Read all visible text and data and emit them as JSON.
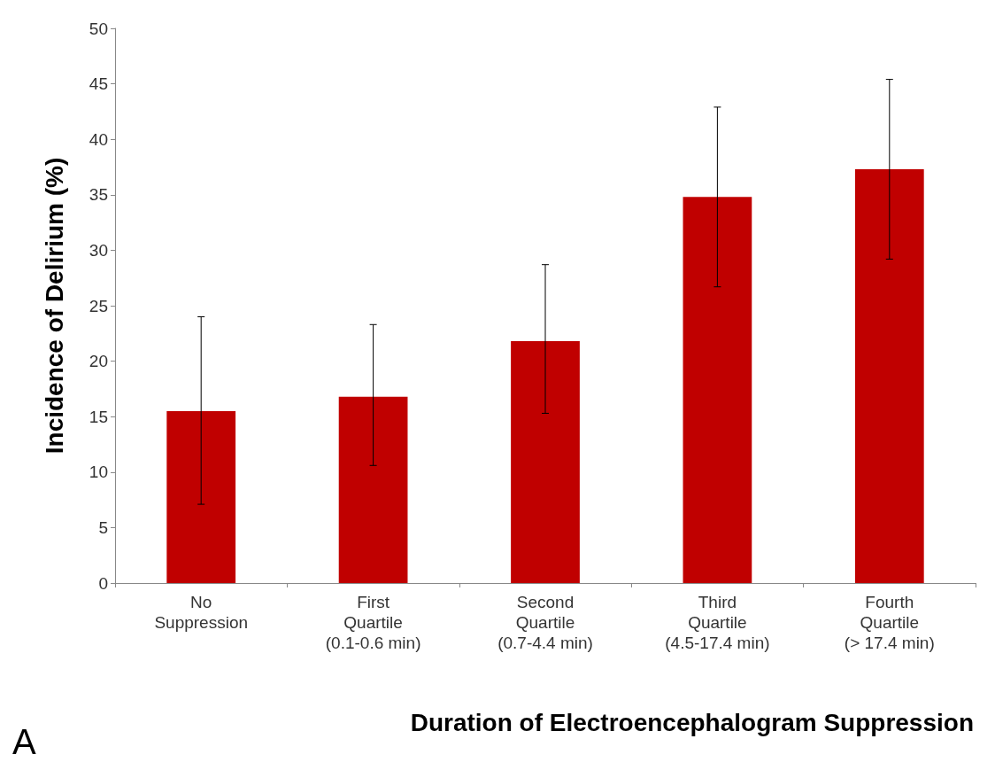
{
  "chart_data": {
    "type": "bar",
    "xlabel": "Duration of Electroencephalogram Suppression",
    "ylabel": "Incidence of Delirium (%)",
    "categories": [
      "No\nSuppression",
      "First\nQuartile\n(0.1-0.6 min)",
      "Second\nQuartile\n(0.7-4.4 min)",
      "Third\nQuartile\n(4.5-17.4 min)",
      "Fourth\nQuartile\n(> 17.4 min)"
    ],
    "values": [
      15.5,
      16.8,
      21.8,
      34.8,
      37.3
    ],
    "errors": [
      [
        7.1,
        24.0
      ],
      [
        10.6,
        23.3
      ],
      [
        15.3,
        28.7
      ],
      [
        26.7,
        42.9
      ],
      [
        29.2,
        45.4
      ]
    ],
    "color": "#c00000",
    "ylim": [
      0,
      50
    ],
    "yticks": [
      0,
      5,
      10,
      15,
      20,
      25,
      30,
      35,
      40,
      45,
      50
    ],
    "grid": false,
    "annotations": [
      "A"
    ]
  }
}
